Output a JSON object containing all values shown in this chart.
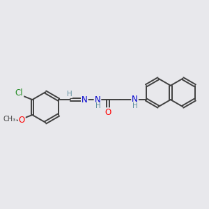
{
  "bg_color": "#e8e8ec",
  "bond_color": "#404040",
  "bond_width": 1.4,
  "fig_size": [
    3.0,
    3.0
  ],
  "dpi": 100,
  "text_colors": {
    "Cl": "#228B22",
    "O": "#FF0000",
    "N": "#0000CD",
    "H": "#6090a0",
    "C": "#404040"
  },
  "font_size": 8.5,
  "xlim": [
    0,
    11
  ],
  "ylim": [
    2,
    8.5
  ]
}
